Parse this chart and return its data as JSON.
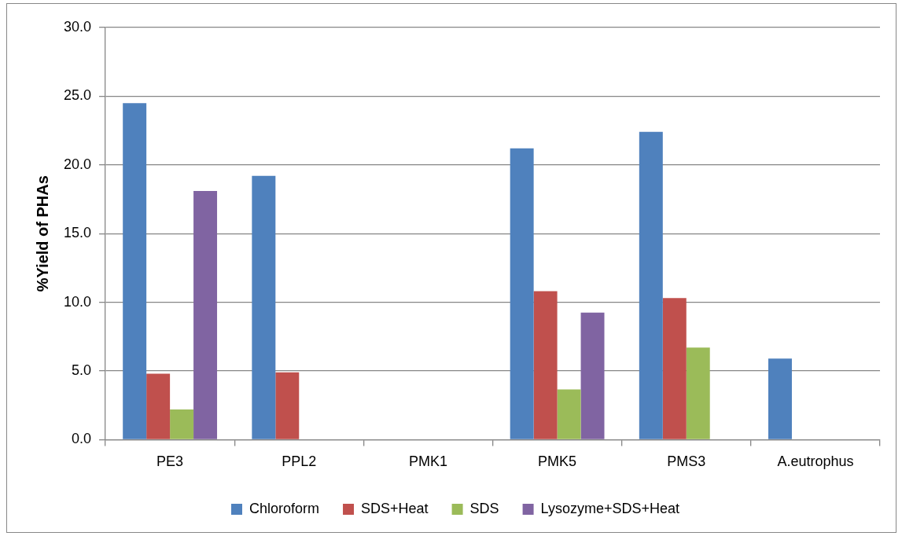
{
  "chart_data": {
    "type": "bar",
    "ylabel": "%Yield of PHAs",
    "categories": [
      "PE3",
      "PPL2",
      "PMK1",
      "PMK5",
      "PMS3",
      "A.eutrophus"
    ],
    "series": [
      {
        "name": "Chloroform",
        "color": "#4f81bd",
        "values": [
          24.5,
          19.2,
          0,
          21.2,
          22.4,
          5.9
        ]
      },
      {
        "name": "SDS+Heat",
        "color": "#c0504d",
        "values": [
          4.8,
          4.9,
          0,
          10.8,
          10.3,
          0
        ]
      },
      {
        "name": "SDS",
        "color": "#9bbb59",
        "values": [
          2.2,
          0,
          0,
          3.65,
          6.7,
          0
        ]
      },
      {
        "name": "Lysozyme+SDS+Heat",
        "color": "#8064a2",
        "values": [
          18.1,
          0,
          0,
          9.25,
          0,
          0
        ]
      }
    ],
    "ylim": [
      0,
      30
    ],
    "yticks": [
      {
        "value": 0,
        "label": "0.0"
      },
      {
        "value": 5,
        "label": "5.0"
      },
      {
        "value": 10,
        "label": "10.0"
      },
      {
        "value": 15,
        "label": "15.0"
      },
      {
        "value": 20,
        "label": "20.0"
      },
      {
        "value": 25,
        "label": "25.0"
      },
      {
        "value": 30,
        "label": "30.0"
      }
    ],
    "grid": "y",
    "legend": "bottom"
  }
}
